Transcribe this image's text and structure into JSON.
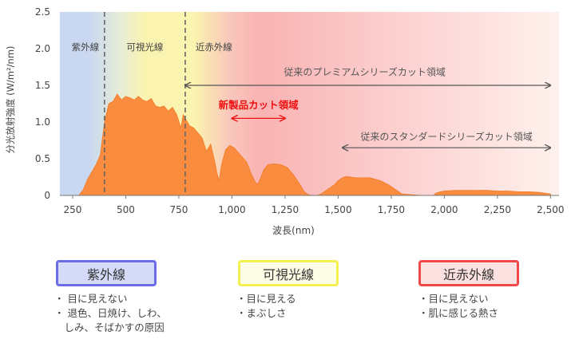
{
  "chart_data": {
    "type": "area",
    "xlabel": "波長(nm)",
    "ylabel": "分光放射強度 (W/m²/nm)",
    "xlim": [
      190,
      2540
    ],
    "ylim": [
      0,
      2.5
    ],
    "xticks": [
      250,
      500,
      750,
      1000,
      1250,
      1500,
      1750,
      2000,
      2250,
      2500
    ],
    "xtick_labels": [
      "250",
      "500",
      "750",
      "1,000",
      "1,250",
      "1,500",
      "1,750",
      "2,000",
      "2,250",
      "2,500"
    ],
    "yticks": [
      0,
      0.5,
      1.0,
      1.5,
      2.0,
      2.5
    ],
    "ytick_labels": [
      "0",
      "0.5",
      "1.0",
      "1.5",
      "2.0",
      "2.5"
    ],
    "grid": false,
    "series": [
      {
        "x": [
          280,
          300,
          320,
          340,
          360,
          380,
          400,
          420,
          440,
          460,
          480,
          500,
          520,
          540,
          560,
          580,
          600,
          620,
          640,
          660,
          680,
          700,
          720,
          740,
          760,
          770,
          790,
          800,
          820,
          840,
          860,
          880,
          900,
          920,
          930,
          940,
          950,
          970,
          990,
          1010,
          1040,
          1070,
          1090,
          1110,
          1120,
          1130,
          1150,
          1170,
          1200,
          1230,
          1260,
          1290,
          1320,
          1340,
          1360,
          1380,
          1400,
          1420,
          1450,
          1480,
          1500,
          1520,
          1540,
          1560,
          1580,
          1600,
          1650,
          1700,
          1740,
          1780,
          1800,
          1850,
          1900,
          1950,
          1960,
          1980,
          2000,
          2050,
          2100,
          2150,
          2200,
          2250,
          2300,
          2350,
          2400,
          2450,
          2500
        ],
        "y": [
          0,
          0.08,
          0.22,
          0.32,
          0.42,
          0.55,
          1.0,
          1.25,
          1.28,
          1.38,
          1.3,
          1.35,
          1.33,
          1.3,
          1.35,
          1.3,
          1.28,
          1.32,
          1.22,
          1.2,
          1.22,
          1.15,
          1.2,
          1.1,
          0.92,
          1.1,
          1.0,
          0.95,
          0.92,
          0.85,
          0.78,
          0.6,
          0.7,
          0.45,
          0.3,
          0.2,
          0.4,
          0.62,
          0.68,
          0.65,
          0.55,
          0.45,
          0.3,
          0.18,
          0.15,
          0.2,
          0.35,
          0.42,
          0.43,
          0.42,
          0.38,
          0.28,
          0.15,
          0.05,
          0.01,
          0,
          0,
          0.02,
          0.08,
          0.14,
          0.2,
          0.24,
          0.26,
          0.25,
          0.24,
          0.24,
          0.24,
          0.2,
          0.14,
          0.06,
          0.02,
          0.01,
          0,
          0,
          0.03,
          0.05,
          0.06,
          0.07,
          0.07,
          0.07,
          0.07,
          0.06,
          0.06,
          0.05,
          0.05,
          0.04,
          0.02
        ]
      }
    ],
    "region_labels": [
      {
        "text": "紫外線",
        "x": 310
      },
      {
        "text": "可視光線",
        "x": 590
      },
      {
        "text": "近赤外線",
        "x": 915
      }
    ],
    "boundaries": [
      400,
      780
    ],
    "annotations": [
      {
        "text": "従来のプレミアムシリーズカット領域",
        "x_from": 780,
        "x_to": 2500,
        "y_text": 1.68,
        "y_arrow": 1.5,
        "color": "#555555",
        "bold": false
      },
      {
        "text": "新製品カット領域",
        "x_from": 1000,
        "x_to": 1250,
        "y_text": 1.23,
        "y_arrow": 1.05,
        "color": "#ee1111",
        "bold": true
      },
      {
        "text": "従来のスタンダードシリーズカット領域",
        "x_from": 1520,
        "x_to": 2500,
        "y_text": 0.8,
        "y_arrow": 0.65,
        "color": "#555555",
        "bold": false
      }
    ],
    "colors": {
      "fill": "#f98c3e",
      "uv_band": "#c9d8f0",
      "visible_band": "#fbf3b0",
      "ir_band": "#f9b3b3"
    }
  },
  "legend": [
    {
      "title": "紫外線",
      "notes": [
        "・ 目に見えない",
        "・ 退色、日焼け、しわ、",
        "　しみ、そばかすの原因"
      ]
    },
    {
      "title": "可視光線",
      "notes": [
        "・目に見える",
        "・まぶしさ"
      ]
    },
    {
      "title": "近赤外線",
      "notes": [
        "・目に見えない",
        "・肌に感じる熱さ"
      ]
    }
  ]
}
